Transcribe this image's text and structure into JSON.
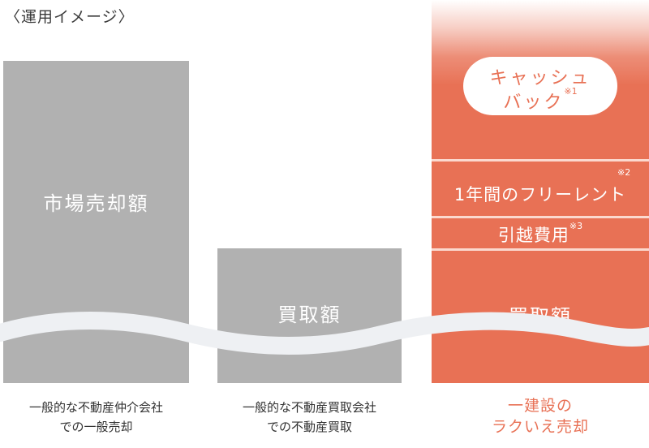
{
  "heading": "〈運用イメージ〉",
  "colors": {
    "gray": "#b1b1b1",
    "orange": "#e87155",
    "wave": "#eef0f3",
    "caption": "#333333"
  },
  "bars": [
    {
      "label": "市場売却額",
      "caption_line1": "一般的な不動産仲介会社",
      "caption_line2": "での一般売却"
    },
    {
      "label": "買取額",
      "caption_line1": "一般的な不動産買取会社",
      "caption_line2": "での不動産買取"
    }
  ],
  "plan": {
    "cashback_line1": "キャッシュ",
    "cashback_line2": "バック",
    "cashback_note": "※1",
    "free_rent": "1年間のフリーレント",
    "free_rent_note": "※2",
    "moving": "引越費用",
    "moving_note": "※3",
    "base": "買取額",
    "caption_line1": "一建設の",
    "caption_line2": "ラクいえ売却"
  }
}
